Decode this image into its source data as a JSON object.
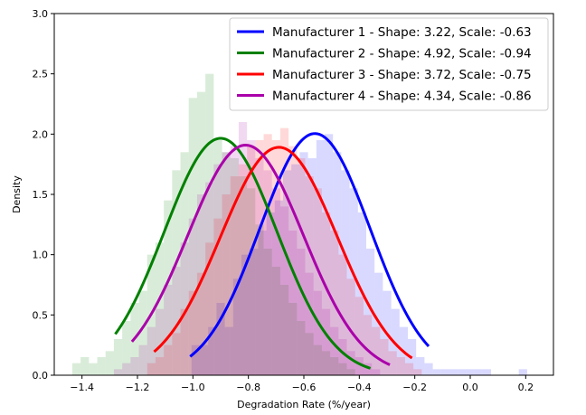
{
  "chart_data": {
    "type": "line",
    "title": "",
    "xlabel": "Degradation Rate (%/year)",
    "ylabel": "Density",
    "xlim": [
      -1.5,
      0.3
    ],
    "ylim": [
      0,
      3.0
    ],
    "xticks": [
      -1.4,
      -1.2,
      -1.0,
      -0.8,
      -0.6,
      -0.4,
      -0.2,
      0.0,
      0.2
    ],
    "xtick_labels": [
      "−1.4",
      "−1.2",
      "−1.0",
      "−0.8",
      "−0.6",
      "−0.4",
      "−0.2",
      "0.0",
      "0.2"
    ],
    "yticks": [
      0.0,
      0.5,
      1.0,
      1.5,
      2.0,
      2.5,
      3.0
    ],
    "ytick_labels": [
      "0.0",
      "0.5",
      "1.0",
      "1.5",
      "2.0",
      "2.5",
      "3.0"
    ],
    "grid": false,
    "legend_position": "top-right",
    "series": [
      {
        "name": "Manufacturer 1 - Shape: 3.22, Scale: -0.63",
        "color": "#0000ff",
        "curve_mean": -0.56,
        "curve_sd": 0.199,
        "curve_range": [
          -1.01,
          -0.15
        ],
        "hist_bins": [
          [
            -0.99,
            0.25
          ],
          [
            -0.96,
            0.25
          ],
          [
            -0.93,
            0.4
          ],
          [
            -0.9,
            0.6
          ],
          [
            -0.87,
            0.4
          ],
          [
            -0.84,
            0.8
          ],
          [
            -0.81,
            1.0
          ],
          [
            -0.78,
            1.05
          ],
          [
            -0.75,
            1.2
          ],
          [
            -0.72,
            1.35
          ],
          [
            -0.69,
            1.45
          ],
          [
            -0.66,
            1.7
          ],
          [
            -0.63,
            1.75
          ],
          [
            -0.6,
            1.85
          ],
          [
            -0.57,
            1.8
          ],
          [
            -0.54,
            1.95
          ],
          [
            -0.51,
            2.0
          ],
          [
            -0.48,
            1.85
          ],
          [
            -0.45,
            1.7
          ],
          [
            -0.42,
            1.55
          ],
          [
            -0.39,
            1.35
          ],
          [
            -0.36,
            1.05
          ],
          [
            -0.33,
            0.85
          ],
          [
            -0.3,
            0.7
          ],
          [
            -0.27,
            0.55
          ],
          [
            -0.24,
            0.4
          ],
          [
            -0.21,
            0.3
          ],
          [
            -0.18,
            0.15
          ],
          [
            -0.15,
            0.1
          ],
          [
            -0.12,
            0.05
          ],
          [
            -0.09,
            0.05
          ],
          [
            -0.06,
            0.05
          ],
          [
            -0.03,
            0.05
          ],
          [
            0.0,
            0.05
          ],
          [
            0.03,
            0.05
          ],
          [
            0.06,
            0.05
          ],
          [
            0.19,
            0.05
          ]
        ]
      },
      {
        "name": "Manufacturer 2 - Shape: 4.92, Scale: -0.94",
        "color": "#008000",
        "curve_mean": -0.9,
        "curve_sd": 0.203,
        "curve_range": [
          -1.28,
          -0.36
        ],
        "hist_bins": [
          [
            -1.42,
            0.1
          ],
          [
            -1.39,
            0.15
          ],
          [
            -1.36,
            0.1
          ],
          [
            -1.33,
            0.15
          ],
          [
            -1.3,
            0.2
          ],
          [
            -1.27,
            0.3
          ],
          [
            -1.24,
            0.45
          ],
          [
            -1.21,
            0.6
          ],
          [
            -1.18,
            0.7
          ],
          [
            -1.15,
            1.0
          ],
          [
            -1.12,
            1.1
          ],
          [
            -1.09,
            1.45
          ],
          [
            -1.06,
            1.7
          ],
          [
            -1.03,
            1.85
          ],
          [
            -1.0,
            2.3
          ],
          [
            -0.97,
            2.35
          ],
          [
            -0.94,
            2.5
          ],
          [
            -0.91,
            1.95
          ],
          [
            -0.88,
            1.85
          ],
          [
            -0.85,
            1.8
          ],
          [
            -0.82,
            1.65
          ],
          [
            -0.79,
            1.55
          ],
          [
            -0.76,
            1.25
          ],
          [
            -0.73,
            1.05
          ],
          [
            -0.7,
            0.9
          ],
          [
            -0.67,
            0.75
          ],
          [
            -0.64,
            0.6
          ],
          [
            -0.61,
            0.45
          ],
          [
            -0.58,
            0.35
          ],
          [
            -0.55,
            0.25
          ],
          [
            -0.52,
            0.2
          ],
          [
            -0.49,
            0.15
          ],
          [
            -0.46,
            0.1
          ],
          [
            -0.43,
            0.05
          ]
        ]
      },
      {
        "name": "Manufacturer 3 - Shape: 3.72, Scale: -0.75",
        "color": "#ff0000",
        "curve_mean": -0.69,
        "curve_sd": 0.211,
        "curve_range": [
          -1.14,
          -0.21
        ],
        "hist_bins": [
          [
            -1.15,
            0.1
          ],
          [
            -1.12,
            0.15
          ],
          [
            -1.09,
            0.25
          ],
          [
            -1.06,
            0.35
          ],
          [
            -1.03,
            0.55
          ],
          [
            -1.0,
            0.7
          ],
          [
            -0.97,
            0.85
          ],
          [
            -0.94,
            1.1
          ],
          [
            -0.91,
            1.3
          ],
          [
            -0.88,
            1.5
          ],
          [
            -0.85,
            1.65
          ],
          [
            -0.82,
            1.75
          ],
          [
            -0.79,
            1.9
          ],
          [
            -0.76,
            1.95
          ],
          [
            -0.73,
            2.0
          ],
          [
            -0.7,
            1.95
          ],
          [
            -0.67,
            2.05
          ],
          [
            -0.64,
            1.9
          ],
          [
            -0.61,
            1.8
          ],
          [
            -0.58,
            1.65
          ],
          [
            -0.55,
            1.55
          ],
          [
            -0.52,
            1.35
          ],
          [
            -0.49,
            1.2
          ],
          [
            -0.46,
            1.0
          ],
          [
            -0.43,
            0.8
          ],
          [
            -0.4,
            0.65
          ],
          [
            -0.37,
            0.5
          ],
          [
            -0.34,
            0.4
          ],
          [
            -0.31,
            0.3
          ],
          [
            -0.28,
            0.2
          ],
          [
            -0.25,
            0.15
          ],
          [
            -0.22,
            0.1
          ],
          [
            -0.19,
            0.05
          ]
        ]
      },
      {
        "name": "Manufacturer 4 - Shape: 4.34, Scale: -0.86",
        "color": "#aa00aa",
        "curve_mean": -0.81,
        "curve_sd": 0.209,
        "curve_range": [
          -1.22,
          -0.29
        ],
        "hist_bins": [
          [
            -1.27,
            0.05
          ],
          [
            -1.24,
            0.1
          ],
          [
            -1.21,
            0.15
          ],
          [
            -1.18,
            0.25
          ],
          [
            -1.15,
            0.4
          ],
          [
            -1.12,
            0.55
          ],
          [
            -1.09,
            0.75
          ],
          [
            -1.06,
            0.9
          ],
          [
            -1.03,
            1.1
          ],
          [
            -1.0,
            1.3
          ],
          [
            -0.97,
            1.5
          ],
          [
            -0.94,
            1.6
          ],
          [
            -0.91,
            1.75
          ],
          [
            -0.88,
            1.85
          ],
          [
            -0.85,
            1.9
          ],
          [
            -0.82,
            2.1
          ],
          [
            -0.79,
            1.95
          ],
          [
            -0.76,
            1.8
          ],
          [
            -0.73,
            1.7
          ],
          [
            -0.7,
            1.55
          ],
          [
            -0.67,
            1.4
          ],
          [
            -0.64,
            1.2
          ],
          [
            -0.61,
            1.05
          ],
          [
            -0.58,
            0.85
          ],
          [
            -0.55,
            0.7
          ],
          [
            -0.52,
            0.55
          ],
          [
            -0.49,
            0.4
          ],
          [
            -0.46,
            0.3
          ],
          [
            -0.43,
            0.2
          ],
          [
            -0.4,
            0.15
          ],
          [
            -0.37,
            0.1
          ],
          [
            -0.34,
            0.05
          ]
        ]
      }
    ]
  }
}
